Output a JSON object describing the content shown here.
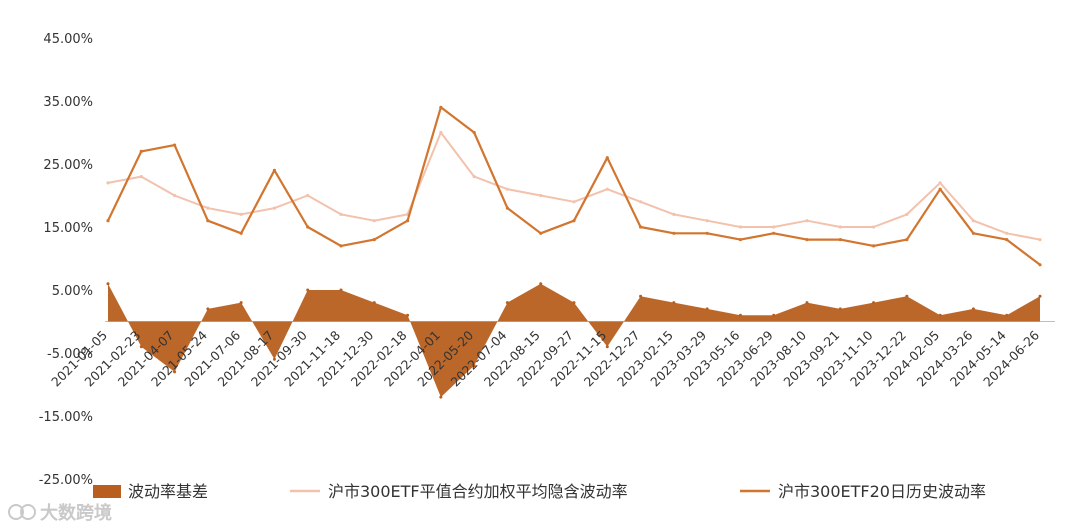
{
  "chart_data": {
    "type": "line",
    "title": "",
    "xlabel": "",
    "ylabel": "",
    "ylim": [
      -0.25,
      0.45
    ],
    "yticks": [
      "45.00%",
      "35.00%",
      "25.00%",
      "15.00%",
      "5.00%",
      "-5.00%",
      "-15.00%",
      "-25.00%"
    ],
    "x_tick_labels": [
      "2021-01-05",
      "2021-02-23",
      "2021-04-07",
      "2021-05-24",
      "2021-07-06",
      "2021-08-17",
      "2021-09-30",
      "2021-11-18",
      "2021-12-30",
      "2022-02-18",
      "2022-04-01",
      "2022-05-20",
      "2022-07-04",
      "2022-08-15",
      "2022-09-27",
      "2022-11-15",
      "2022-12-27",
      "2023-02-15",
      "2023-03-29",
      "2023-05-16",
      "2023-06-29",
      "2023-08-10",
      "2023-09-21",
      "2023-11-10",
      "2023-12-22",
      "2024-02-05",
      "2024-03-26",
      "2024-05-14",
      "2024-06-26"
    ],
    "legend_position": "bottom",
    "series": [
      {
        "name": "波动率基差",
        "kind": "area",
        "color": "#b85f1f",
        "x": [
          "2021-01-05",
          "2021-02-23",
          "2021-04-07",
          "2021-05-24",
          "2021-07-06",
          "2021-08-17",
          "2021-09-30",
          "2021-11-18",
          "2021-12-30",
          "2022-02-18",
          "2022-04-01",
          "2022-05-20",
          "2022-07-04",
          "2022-08-15",
          "2022-09-27",
          "2022-11-15",
          "2022-12-27",
          "2023-02-15",
          "2023-03-29",
          "2023-05-16",
          "2023-06-29",
          "2023-08-10",
          "2023-09-21",
          "2023-11-10",
          "2023-12-22",
          "2024-02-05",
          "2024-03-26",
          "2024-05-14",
          "2024-06-26"
        ],
        "values": [
          0.06,
          -0.04,
          -0.08,
          0.02,
          0.03,
          -0.06,
          0.05,
          0.05,
          0.03,
          0.01,
          -0.12,
          -0.07,
          0.03,
          0.06,
          0.03,
          -0.04,
          0.04,
          0.03,
          0.02,
          0.01,
          0.01,
          0.03,
          0.02,
          0.03,
          0.04,
          0.01,
          0.02,
          0.01,
          0.04
        ]
      },
      {
        "name": "沪市300ETF平值合约加权平均隐含波动率",
        "kind": "line",
        "color": "#f2c2ad",
        "x": [
          "2021-01-05",
          "2021-02-23",
          "2021-04-07",
          "2021-05-24",
          "2021-07-06",
          "2021-08-17",
          "2021-09-30",
          "2021-11-18",
          "2021-12-30",
          "2022-02-18",
          "2022-04-01",
          "2022-05-20",
          "2022-07-04",
          "2022-08-15",
          "2022-09-27",
          "2022-11-15",
          "2022-12-27",
          "2023-02-15",
          "2023-03-29",
          "2023-05-16",
          "2023-06-29",
          "2023-08-10",
          "2023-09-21",
          "2023-11-10",
          "2023-12-22",
          "2024-02-05",
          "2024-03-26",
          "2024-05-14",
          "2024-06-26"
        ],
        "values": [
          0.22,
          0.23,
          0.2,
          0.18,
          0.17,
          0.18,
          0.2,
          0.17,
          0.16,
          0.17,
          0.3,
          0.23,
          0.21,
          0.2,
          0.19,
          0.21,
          0.19,
          0.17,
          0.16,
          0.15,
          0.15,
          0.16,
          0.15,
          0.15,
          0.17,
          0.22,
          0.16,
          0.14,
          0.13
        ]
      },
      {
        "name": "沪市300ETF20日历史波动率",
        "kind": "line",
        "color": "#d2752f",
        "x": [
          "2021-01-05",
          "2021-02-23",
          "2021-04-07",
          "2021-05-24",
          "2021-07-06",
          "2021-08-17",
          "2021-09-30",
          "2021-11-18",
          "2021-12-30",
          "2022-02-18",
          "2022-04-01",
          "2022-05-20",
          "2022-07-04",
          "2022-08-15",
          "2022-09-27",
          "2022-11-15",
          "2022-12-27",
          "2023-02-15",
          "2023-03-29",
          "2023-05-16",
          "2023-06-29",
          "2023-08-10",
          "2023-09-21",
          "2023-11-10",
          "2023-12-22",
          "2024-02-05",
          "2024-03-26",
          "2024-05-14",
          "2024-06-26"
        ],
        "values": [
          0.16,
          0.27,
          0.28,
          0.16,
          0.14,
          0.24,
          0.15,
          0.12,
          0.13,
          0.16,
          0.34,
          0.3,
          0.18,
          0.14,
          0.16,
          0.26,
          0.15,
          0.14,
          0.14,
          0.13,
          0.14,
          0.13,
          0.13,
          0.12,
          0.13,
          0.21,
          0.14,
          0.13,
          0.09
        ]
      }
    ]
  },
  "watermark": {
    "text": "大数跨境"
  }
}
